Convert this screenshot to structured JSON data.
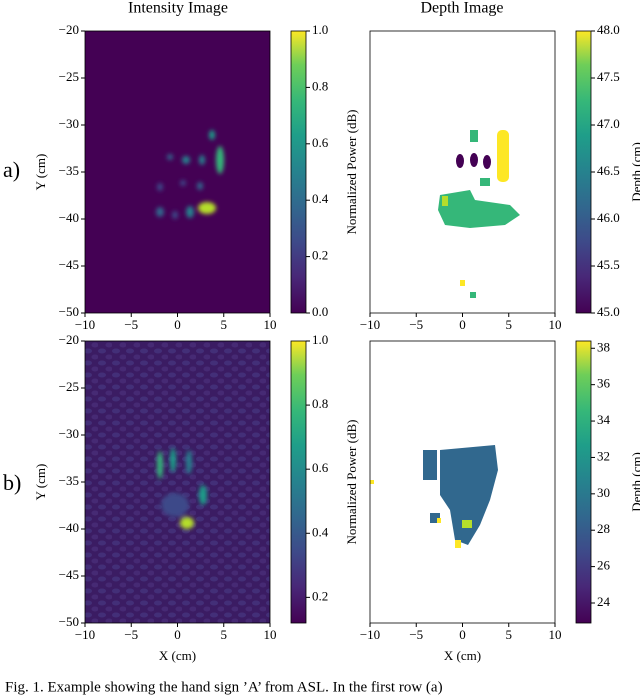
{
  "figure": {
    "column_titles": [
      "Intensity Image",
      "Depth Image"
    ],
    "rows": [
      {
        "label": "a)",
        "panels": [
          {
            "ylabel": "Y (cm)",
            "xlim": [
              -10,
              10
            ],
            "ylim": [
              -50,
              -20
            ],
            "xticks": [
              {
                "value": -10,
                "label": "−10"
              },
              {
                "value": -5,
                "label": "−5"
              },
              0,
              5,
              10
            ],
            "yticks": [
              {
                "value": -20,
                "label": "−20"
              },
              {
                "value": -25,
                "label": "−25"
              },
              {
                "value": -30,
                "label": "−30"
              },
              {
                "value": -35,
                "label": "−35"
              },
              {
                "value": -40,
                "label": "−40"
              },
              {
                "value": -45,
                "label": "−45"
              },
              {
                "value": -50,
                "label": "−50"
              }
            ],
            "colorbar": {
              "label": "Normalized Power (dB)",
              "range": [
                0,
                1
              ],
              "ticks": [
                {
                  "value": 0,
                  "label": "0.0"
                },
                0.2,
                0.4,
                0.6,
                0.8,
                {
                  "value": 1,
                  "label": "1.0"
                }
              ]
            }
          },
          {
            "xlim": [
              -10,
              10
            ],
            "ylim": [
              -50,
              -20
            ],
            "xticks": [
              {
                "value": -10,
                "label": "−10"
              },
              {
                "value": -5,
                "label": "−5"
              },
              0,
              5,
              10
            ],
            "colorbar": {
              "label": "Depth (cm)",
              "range": [
                45,
                48
              ],
              "ticks": [
                {
                  "value": 45,
                  "label": "45.0"
                },
                45.5,
                {
                  "value": 46,
                  "label": "46.0"
                },
                46.5,
                {
                  "value": 47,
                  "label": "47.0"
                },
                47.5,
                {
                  "value": 48,
                  "label": "48.0"
                }
              ]
            }
          }
        ]
      },
      {
        "label": "b)",
        "panels": [
          {
            "ylabel": "Y (cm)",
            "xlabel": "X (cm)",
            "xlim": [
              -10,
              10
            ],
            "ylim": [
              -50,
              -20
            ],
            "xticks": [
              {
                "value": -10,
                "label": "−10"
              },
              {
                "value": -5,
                "label": "−5"
              },
              0,
              5,
              10
            ],
            "yticks": [
              {
                "value": -20,
                "label": "−20"
              },
              {
                "value": -25,
                "label": "−25"
              },
              {
                "value": -30,
                "label": "−30"
              },
              {
                "value": -35,
                "label": "−35"
              },
              {
                "value": -40,
                "label": "−40"
              },
              {
                "value": -45,
                "label": "−45"
              },
              {
                "value": -50,
                "label": "−50"
              }
            ],
            "colorbar": {
              "label": "Normalized Power (dB)",
              "range": [
                0.12,
                1
              ],
              "ticks": [
                0.2,
                0.4,
                0.6,
                0.8,
                {
                  "value": 1,
                  "label": "1.0"
                }
              ]
            }
          },
          {
            "xlabel": "X (cm)",
            "xlim": [
              -10,
              10
            ],
            "ylim": [
              -50,
              -20
            ],
            "xticks": [
              {
                "value": -10,
                "label": "−10"
              },
              {
                "value": -5,
                "label": "−5"
              },
              0,
              5,
              10
            ],
            "colorbar": {
              "label": "Depth (cm)",
              "range": [
                22.9,
                38.4
              ],
              "ticks": [
                24,
                26,
                28,
                30,
                32,
                34,
                36,
                38
              ]
            }
          }
        ]
      }
    ],
    "caption": "Fig. 1.  Example showing the hand sign ’A’ from ASL. In the first row (a)"
  }
}
